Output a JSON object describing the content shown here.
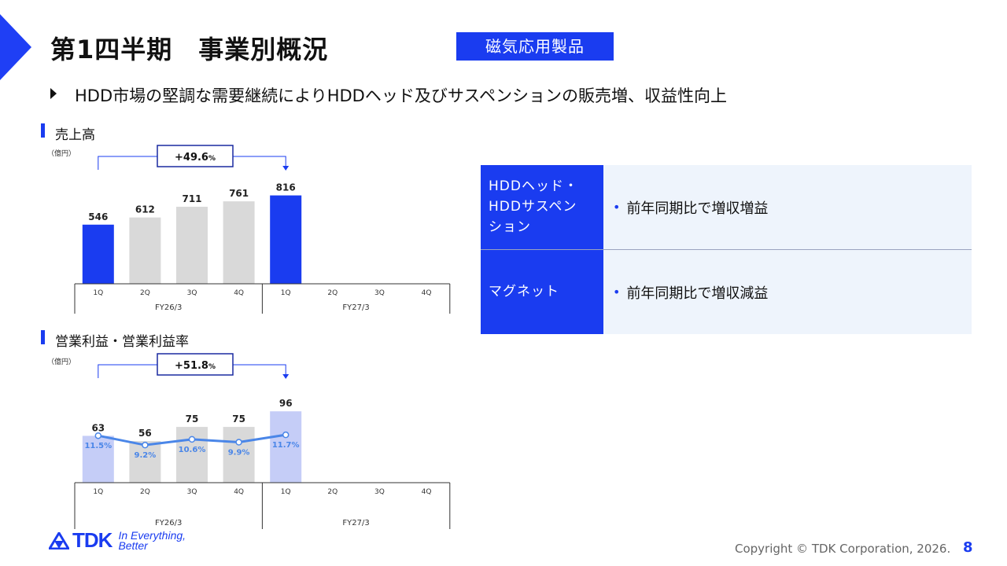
{
  "slide": {
    "title": "第1四半期　事業別概況",
    "segment": "磁気応用製品",
    "headline": "HDD市場の堅調な需要継続によりHDDヘッド及びサスペンションの販売増、収益性向上",
    "copyright": "Copyright  © TDK Corporation, 2026.",
    "page_number": "8",
    "logo_text": "TDK",
    "logo_tagline_1": "In Everything,",
    "logo_tagline_2": "Better"
  },
  "colors": {
    "accent": "#1a3cf0",
    "bar_grey": "#d9d9d9",
    "bar_light_blue": "#c5cdf7",
    "line_blue": "#4a86e8",
    "panel_bg": "#eef4fc"
  },
  "summary": [
    {
      "label": "HDDヘッド・\nHDDサスペン\nション",
      "text": "前年同期比で増収増益"
    },
    {
      "label": "マグネット",
      "text": "前年同期比で増収減益"
    }
  ],
  "chart_data": [
    {
      "type": "bar",
      "title": "売上高",
      "unit": "（億円）",
      "categories": [
        "1Q",
        "2Q",
        "3Q",
        "4Q",
        "1Q",
        "2Q",
        "3Q",
        "4Q"
      ],
      "groups": [
        {
          "label": "FY26/3",
          "span": 4
        },
        {
          "label": "FY27/3",
          "span": 4
        }
      ],
      "values": [
        546,
        612,
        711,
        761,
        816,
        null,
        null,
        null
      ],
      "highlight": [
        true,
        false,
        false,
        false,
        true,
        false,
        false,
        false
      ],
      "ylim": [
        0,
        900
      ],
      "growth_label": "+49.6",
      "growth_unit": "%"
    },
    {
      "type": "bar",
      "title": "営業利益・営業利益率",
      "unit": "（億円）",
      "categories": [
        "1Q",
        "2Q",
        "3Q",
        "4Q",
        "1Q",
        "2Q",
        "3Q",
        "4Q"
      ],
      "groups": [
        {
          "label": "FY26/3",
          "span": 4
        },
        {
          "label": "FY27/3",
          "span": 4
        }
      ],
      "values": [
        63,
        56,
        75,
        75,
        96,
        null,
        null,
        null
      ],
      "highlight": [
        true,
        false,
        false,
        false,
        true,
        false,
        false,
        false
      ],
      "ylim": [
        0,
        110
      ],
      "line_series": {
        "values": [
          11.5,
          9.2,
          10.6,
          9.9,
          11.7
        ],
        "labels": [
          "11.5%",
          "9.2%",
          "10.6%",
          "9.9%",
          "11.7%"
        ],
        "ylim": [
          0,
          20
        ]
      },
      "growth_label": "+51.8",
      "growth_unit": "%"
    }
  ]
}
